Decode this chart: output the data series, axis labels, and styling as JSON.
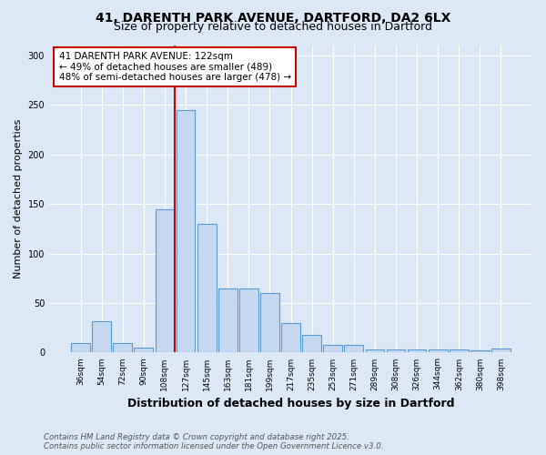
{
  "title_line1": "41, DARENTH PARK AVENUE, DARTFORD, DA2 6LX",
  "title_line2": "Size of property relative to detached houses in Dartford",
  "xlabel": "Distribution of detached houses by size in Dartford",
  "ylabel": "Number of detached properties",
  "categories": [
    "36sqm",
    "54sqm",
    "72sqm",
    "90sqm",
    "108sqm",
    "127sqm",
    "145sqm",
    "163sqm",
    "181sqm",
    "199sqm",
    "217sqm",
    "235sqm",
    "253sqm",
    "271sqm",
    "289sqm",
    "308sqm",
    "326sqm",
    "344sqm",
    "362sqm",
    "380sqm",
    "398sqm"
  ],
  "values": [
    10,
    32,
    10,
    5,
    145,
    245,
    130,
    65,
    65,
    60,
    30,
    18,
    8,
    8,
    3,
    3,
    3,
    3,
    3,
    2,
    4
  ],
  "bar_color": "#c5d8f0",
  "bar_edgecolor": "#5b9bd5",
  "bar_linewidth": 0.8,
  "vline_index": 5,
  "vline_color": "#cc0000",
  "vline_linewidth": 1.5,
  "annotation_text": "41 DARENTH PARK AVENUE: 122sqm\n← 49% of detached houses are smaller (489)\n48% of semi-detached houses are larger (478) →",
  "background_color": "#dce8f5",
  "plot_background": "#dce8f5",
  "footer_text": "Contains HM Land Registry data © Crown copyright and database right 2025.\nContains public sector information licensed under the Open Government Licence v3.0.",
  "ylim": [
    0,
    310
  ],
  "yticks": [
    0,
    50,
    100,
    150,
    200,
    250,
    300
  ]
}
